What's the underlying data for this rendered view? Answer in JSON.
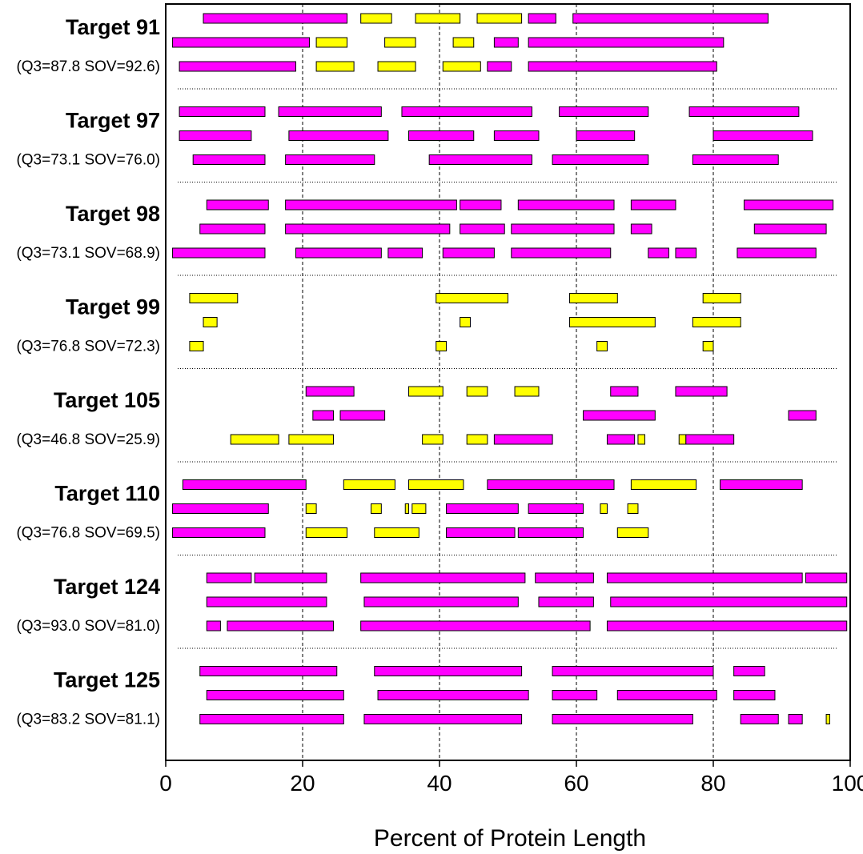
{
  "chart_data": {
    "type": "bar",
    "subtype": "segment-tracks",
    "xlabel": "Percent of Protein Length",
    "xlim": [
      0,
      100
    ],
    "xticks": [
      0,
      20,
      40,
      60,
      80,
      100
    ],
    "gridlines": [
      20,
      40,
      60,
      80
    ],
    "grid": "vertical dashed",
    "colors": {
      "pink": "#ff00ff",
      "yellow": "#ffff00"
    },
    "targets": [
      {
        "name": "Target 91",
        "scores": "(Q3=87.8 SOV=92.6)",
        "rows": [
          [
            [
              5.5,
              26.5,
              "pink"
            ],
            [
              28.5,
              33,
              "yellow"
            ],
            [
              36.5,
              43,
              "yellow"
            ],
            [
              45.5,
              52,
              "yellow"
            ],
            [
              53,
              57,
              "pink"
            ],
            [
              59.5,
              88,
              "pink"
            ]
          ],
          [
            [
              1,
              21,
              "pink"
            ],
            [
              22,
              26.5,
              "yellow"
            ],
            [
              32,
              36.5,
              "yellow"
            ],
            [
              42,
              45,
              "yellow"
            ],
            [
              48,
              51.5,
              "pink"
            ],
            [
              53,
              81.5,
              "pink"
            ]
          ],
          [
            [
              2,
              19,
              "pink"
            ],
            [
              22,
              27.5,
              "yellow"
            ],
            [
              31,
              36.5,
              "yellow"
            ],
            [
              40.5,
              46,
              "yellow"
            ],
            [
              47,
              50.5,
              "pink"
            ],
            [
              53,
              80.5,
              "pink"
            ]
          ]
        ]
      },
      {
        "name": "Target 97",
        "scores": "(Q3=73.1 SOV=76.0)",
        "rows": [
          [
            [
              2,
              14.5,
              "pink"
            ],
            [
              16.5,
              31.5,
              "pink"
            ],
            [
              34.5,
              53.5,
              "pink"
            ],
            [
              57.5,
              70.5,
              "pink"
            ],
            [
              76.5,
              92.5,
              "pink"
            ]
          ],
          [
            [
              2,
              12.5,
              "pink"
            ],
            [
              18,
              32.5,
              "pink"
            ],
            [
              35.5,
              45,
              "pink"
            ],
            [
              48,
              54.5,
              "pink"
            ],
            [
              60,
              68.5,
              "pink"
            ],
            [
              80,
              94.5,
              "pink"
            ]
          ],
          [
            [
              4,
              14.5,
              "pink"
            ],
            [
              17.5,
              30.5,
              "pink"
            ],
            [
              38.5,
              53.5,
              "pink"
            ],
            [
              56.5,
              70.5,
              "pink"
            ],
            [
              77,
              89.5,
              "pink"
            ]
          ]
        ]
      },
      {
        "name": "Target 98",
        "scores": "(Q3=73.1 SOV=68.9)",
        "rows": [
          [
            [
              6,
              15,
              "pink"
            ],
            [
              17.5,
              42.5,
              "pink"
            ],
            [
              43,
              49,
              "pink"
            ],
            [
              51.5,
              65.5,
              "pink"
            ],
            [
              68,
              74.5,
              "pink"
            ],
            [
              84.5,
              97.5,
              "pink"
            ]
          ],
          [
            [
              5,
              14.5,
              "pink"
            ],
            [
              17.5,
              41.5,
              "pink"
            ],
            [
              43,
              49.5,
              "pink"
            ],
            [
              50.5,
              65.5,
              "pink"
            ],
            [
              68,
              71,
              "pink"
            ],
            [
              86,
              96.5,
              "pink"
            ]
          ],
          [
            [
              1,
              14.5,
              "pink"
            ],
            [
              19,
              31.5,
              "pink"
            ],
            [
              32.5,
              37.5,
              "pink"
            ],
            [
              40.5,
              48,
              "pink"
            ],
            [
              50.5,
              65,
              "pink"
            ],
            [
              70.5,
              73.5,
              "pink"
            ],
            [
              74.5,
              77.5,
              "pink"
            ],
            [
              83.5,
              95,
              "pink"
            ]
          ]
        ]
      },
      {
        "name": "Target 99",
        "scores": "(Q3=76.8 SOV=72.3)",
        "rows": [
          [
            [
              3.5,
              10.5,
              "yellow"
            ],
            [
              39.5,
              50,
              "yellow"
            ],
            [
              59,
              66,
              "yellow"
            ],
            [
              78.5,
              84,
              "yellow"
            ]
          ],
          [
            [
              5.5,
              7.5,
              "yellow"
            ],
            [
              43,
              44.5,
              "yellow"
            ],
            [
              59,
              71.5,
              "yellow"
            ],
            [
              77,
              84,
              "yellow"
            ]
          ],
          [
            [
              3.5,
              5.5,
              "yellow"
            ],
            [
              39.5,
              41,
              "yellow"
            ],
            [
              63,
              64.5,
              "yellow"
            ],
            [
              78.5,
              80,
              "yellow"
            ]
          ]
        ]
      },
      {
        "name": "Target 105",
        "scores": "(Q3=46.8 SOV=25.9)",
        "rows": [
          [
            [
              20.5,
              27.5,
              "pink"
            ],
            [
              35.5,
              40.5,
              "yellow"
            ],
            [
              44,
              47,
              "yellow"
            ],
            [
              51,
              54.5,
              "yellow"
            ],
            [
              65,
              69,
              "pink"
            ],
            [
              74.5,
              82,
              "pink"
            ]
          ],
          [
            [
              21.5,
              24.5,
              "pink"
            ],
            [
              25.5,
              32,
              "pink"
            ],
            [
              61,
              71.5,
              "pink"
            ],
            [
              91,
              95,
              "pink"
            ]
          ],
          [
            [
              9.5,
              16.5,
              "yellow"
            ],
            [
              18,
              24.5,
              "yellow"
            ],
            [
              37.5,
              40.5,
              "yellow"
            ],
            [
              44,
              47,
              "yellow"
            ],
            [
              48,
              56.5,
              "pink"
            ],
            [
              64.5,
              68.5,
              "pink"
            ],
            [
              69,
              70,
              "yellow"
            ],
            [
              75,
              76,
              "yellow"
            ],
            [
              76,
              83,
              "pink"
            ]
          ]
        ]
      },
      {
        "name": "Target 110",
        "scores": "(Q3=76.8 SOV=69.5)",
        "rows": [
          [
            [
              2.5,
              20.5,
              "pink"
            ],
            [
              26,
              33.5,
              "yellow"
            ],
            [
              35.5,
              43.5,
              "yellow"
            ],
            [
              47,
              65.5,
              "pink"
            ],
            [
              68,
              77.5,
              "yellow"
            ],
            [
              81,
              93,
              "pink"
            ]
          ],
          [
            [
              1,
              15,
              "pink"
            ],
            [
              20.5,
              22,
              "yellow"
            ],
            [
              30,
              31.5,
              "yellow"
            ],
            [
              35,
              35.5,
              "yellow"
            ],
            [
              36,
              38,
              "yellow"
            ],
            [
              41,
              51.5,
              "pink"
            ],
            [
              53,
              61,
              "pink"
            ],
            [
              63.5,
              64.5,
              "yellow"
            ],
            [
              67.5,
              69,
              "yellow"
            ]
          ],
          [
            [
              1,
              14.5,
              "pink"
            ],
            [
              20.5,
              26.5,
              "yellow"
            ],
            [
              30.5,
              37,
              "yellow"
            ],
            [
              41,
              51,
              "pink"
            ],
            [
              51.5,
              61,
              "pink"
            ],
            [
              66,
              70.5,
              "yellow"
            ]
          ]
        ]
      },
      {
        "name": "Target 124",
        "scores": "(Q3=93.0 SOV=81.0)",
        "rows": [
          [
            [
              6,
              12.5,
              "pink"
            ],
            [
              13,
              23.5,
              "pink"
            ],
            [
              28.5,
              52.5,
              "pink"
            ],
            [
              54,
              62.5,
              "pink"
            ],
            [
              64.5,
              93,
              "pink"
            ],
            [
              93.5,
              99.5,
              "pink"
            ]
          ],
          [
            [
              6,
              23.5,
              "pink"
            ],
            [
              29,
              51.5,
              "pink"
            ],
            [
              54.5,
              62.5,
              "pink"
            ],
            [
              65,
              99.5,
              "pink"
            ]
          ],
          [
            [
              6,
              8,
              "pink"
            ],
            [
              9,
              24.5,
              "pink"
            ],
            [
              28.5,
              62,
              "pink"
            ],
            [
              64.5,
              99.5,
              "pink"
            ]
          ]
        ]
      },
      {
        "name": "Target 125",
        "scores": "(Q3=83.2 SOV=81.1)",
        "rows": [
          [
            [
              5,
              25,
              "pink"
            ],
            [
              30.5,
              52,
              "pink"
            ],
            [
              56.5,
              80,
              "pink"
            ],
            [
              83,
              87.5,
              "pink"
            ]
          ],
          [
            [
              6,
              26,
              "pink"
            ],
            [
              31,
              53,
              "pink"
            ],
            [
              56.5,
              63,
              "pink"
            ],
            [
              66,
              80.5,
              "pink"
            ],
            [
              83,
              89,
              "pink"
            ]
          ],
          [
            [
              5,
              26,
              "pink"
            ],
            [
              29,
              52,
              "pink"
            ],
            [
              56.5,
              77,
              "pink"
            ],
            [
              84,
              89.5,
              "pink"
            ],
            [
              91,
              93,
              "pink"
            ],
            [
              96.5,
              97,
              "yellow"
            ]
          ]
        ]
      }
    ]
  }
}
